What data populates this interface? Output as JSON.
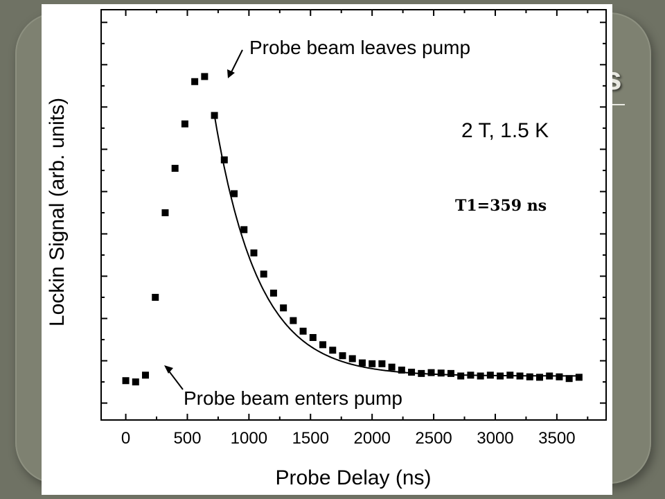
{
  "slide": {
    "title_fragment": "s",
    "colors": {
      "background": "#6f7264",
      "panel": "#7e8171",
      "chart_bg": "#ffffff"
    }
  },
  "chart_data": {
    "type": "scatter",
    "xlabel": "Probe Delay (ns)",
    "ylabel": "Lockin Signal (arb. units)",
    "xlim": [
      -200,
      3900
    ],
    "ylim": [
      -0.4,
      9.3
    ],
    "x_ticks": [
      0,
      500,
      1000,
      1500,
      2000,
      2500,
      3000,
      3500
    ],
    "y_ticks_labeled": false,
    "grid": false,
    "annotations": [
      "Probe beam leaves pump",
      "Probe beam enters pump",
      "2 T, 1.5 K",
      "T1=359 ns"
    ],
    "series": [
      {
        "marker": "square",
        "points": [
          [
            0,
            0.53
          ],
          [
            80,
            0.5
          ],
          [
            160,
            0.66
          ],
          [
            240,
            2.5
          ],
          [
            320,
            4.5
          ],
          [
            400,
            5.55
          ],
          [
            480,
            6.6
          ],
          [
            560,
            7.6
          ],
          [
            640,
            7.72
          ],
          [
            720,
            6.8
          ],
          [
            800,
            5.75
          ],
          [
            880,
            4.95
          ],
          [
            960,
            4.1
          ],
          [
            1040,
            3.55
          ],
          [
            1120,
            3.05
          ],
          [
            1200,
            2.6
          ],
          [
            1280,
            2.25
          ],
          [
            1360,
            1.95
          ],
          [
            1440,
            1.7
          ],
          [
            1520,
            1.55
          ],
          [
            1600,
            1.38
          ],
          [
            1680,
            1.25
          ],
          [
            1760,
            1.12
          ],
          [
            1840,
            1.05
          ],
          [
            1920,
            0.95
          ],
          [
            2000,
            0.93
          ],
          [
            2080,
            0.93
          ],
          [
            2160,
            0.85
          ],
          [
            2240,
            0.78
          ],
          [
            2320,
            0.73
          ],
          [
            2400,
            0.7
          ],
          [
            2480,
            0.72
          ],
          [
            2560,
            0.71
          ],
          [
            2640,
            0.7
          ],
          [
            2720,
            0.64
          ],
          [
            2800,
            0.66
          ],
          [
            2880,
            0.64
          ],
          [
            2960,
            0.66
          ],
          [
            3040,
            0.64
          ],
          [
            3120,
            0.66
          ],
          [
            3200,
            0.64
          ],
          [
            3280,
            0.62
          ],
          [
            3360,
            0.61
          ],
          [
            3440,
            0.64
          ],
          [
            3520,
            0.62
          ],
          [
            3600,
            0.58
          ],
          [
            3680,
            0.61
          ]
        ]
      }
    ],
    "fit": {
      "tau_ns": 359,
      "x_start": 720,
      "x_end": 3700
    }
  }
}
